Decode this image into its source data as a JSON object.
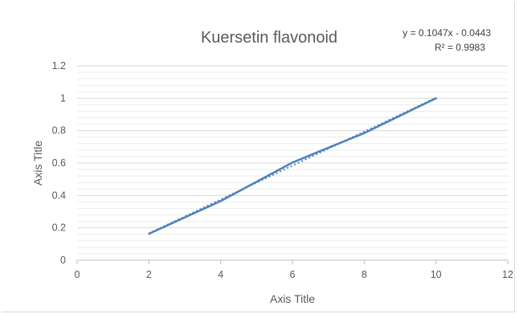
{
  "chart_data": {
    "type": "line",
    "title": "Kuersetin flavonoid",
    "xlabel": "Axis Title",
    "ylabel": "Axis Title",
    "xlim": [
      0,
      12
    ],
    "ylim": [
      0,
      1.2
    ],
    "x_ticks": [
      "0",
      "2",
      "4",
      "6",
      "8",
      "10",
      "12"
    ],
    "y_ticks": [
      "0",
      "0.2",
      "0.4",
      "0.6",
      "0.8",
      "1",
      "1.2"
    ],
    "grid": true,
    "series": [
      {
        "x": [
          2,
          4,
          6,
          8,
          10
        ],
        "values": [
          0.163,
          0.365,
          0.603,
          0.785,
          1.0
        ],
        "color": "#4f81bd"
      }
    ],
    "trendline": {
      "type": "linear",
      "slope": 0.1047,
      "intercept": -0.0443,
      "equation": "y = 0.1047x - 0.0443",
      "r2": "R² = 0.9983",
      "color": "#4f81bd",
      "style": "dotted"
    }
  }
}
